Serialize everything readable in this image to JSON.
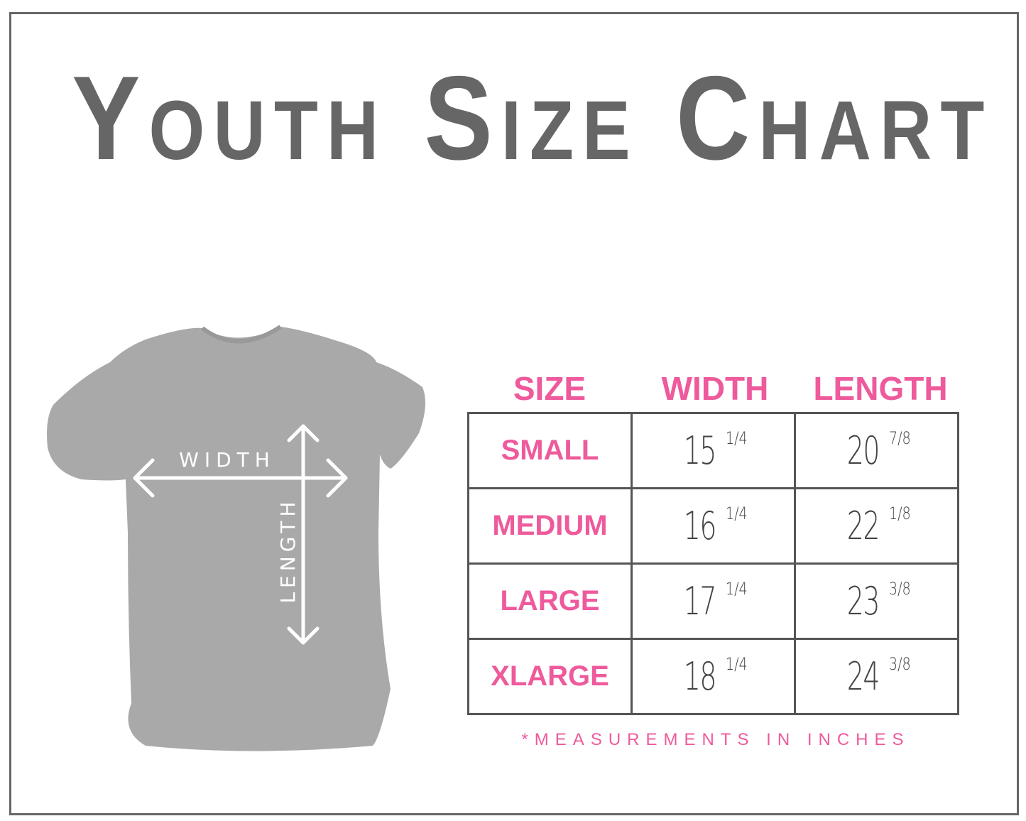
{
  "title": "Youth Size Chart",
  "colors": {
    "title": "#666666",
    "accent": "#ee5a9c",
    "shirt": "#a9a9a9"
  },
  "diagram": {
    "width_label": "WIDTH",
    "length_label": "LENGTH"
  },
  "table": {
    "headers": [
      "SIZE",
      "WIDTH",
      "LENGTH"
    ],
    "rows": [
      {
        "size": "SMALL",
        "width_whole": "15",
        "width_frac": "1/4",
        "length_whole": "20",
        "length_frac": "7/8"
      },
      {
        "size": "MEDIUM",
        "width_whole": "16",
        "width_frac": "1/4",
        "length_whole": "22",
        "length_frac": "1/8"
      },
      {
        "size": "LARGE",
        "width_whole": "17",
        "width_frac": "1/4",
        "length_whole": "23",
        "length_frac": "3/8"
      },
      {
        "size": "XLARGE",
        "width_whole": "18",
        "width_frac": "1/4",
        "length_whole": "24",
        "length_frac": "3/8"
      }
    ]
  },
  "note": "*MEASUREMENTS IN INCHES"
}
